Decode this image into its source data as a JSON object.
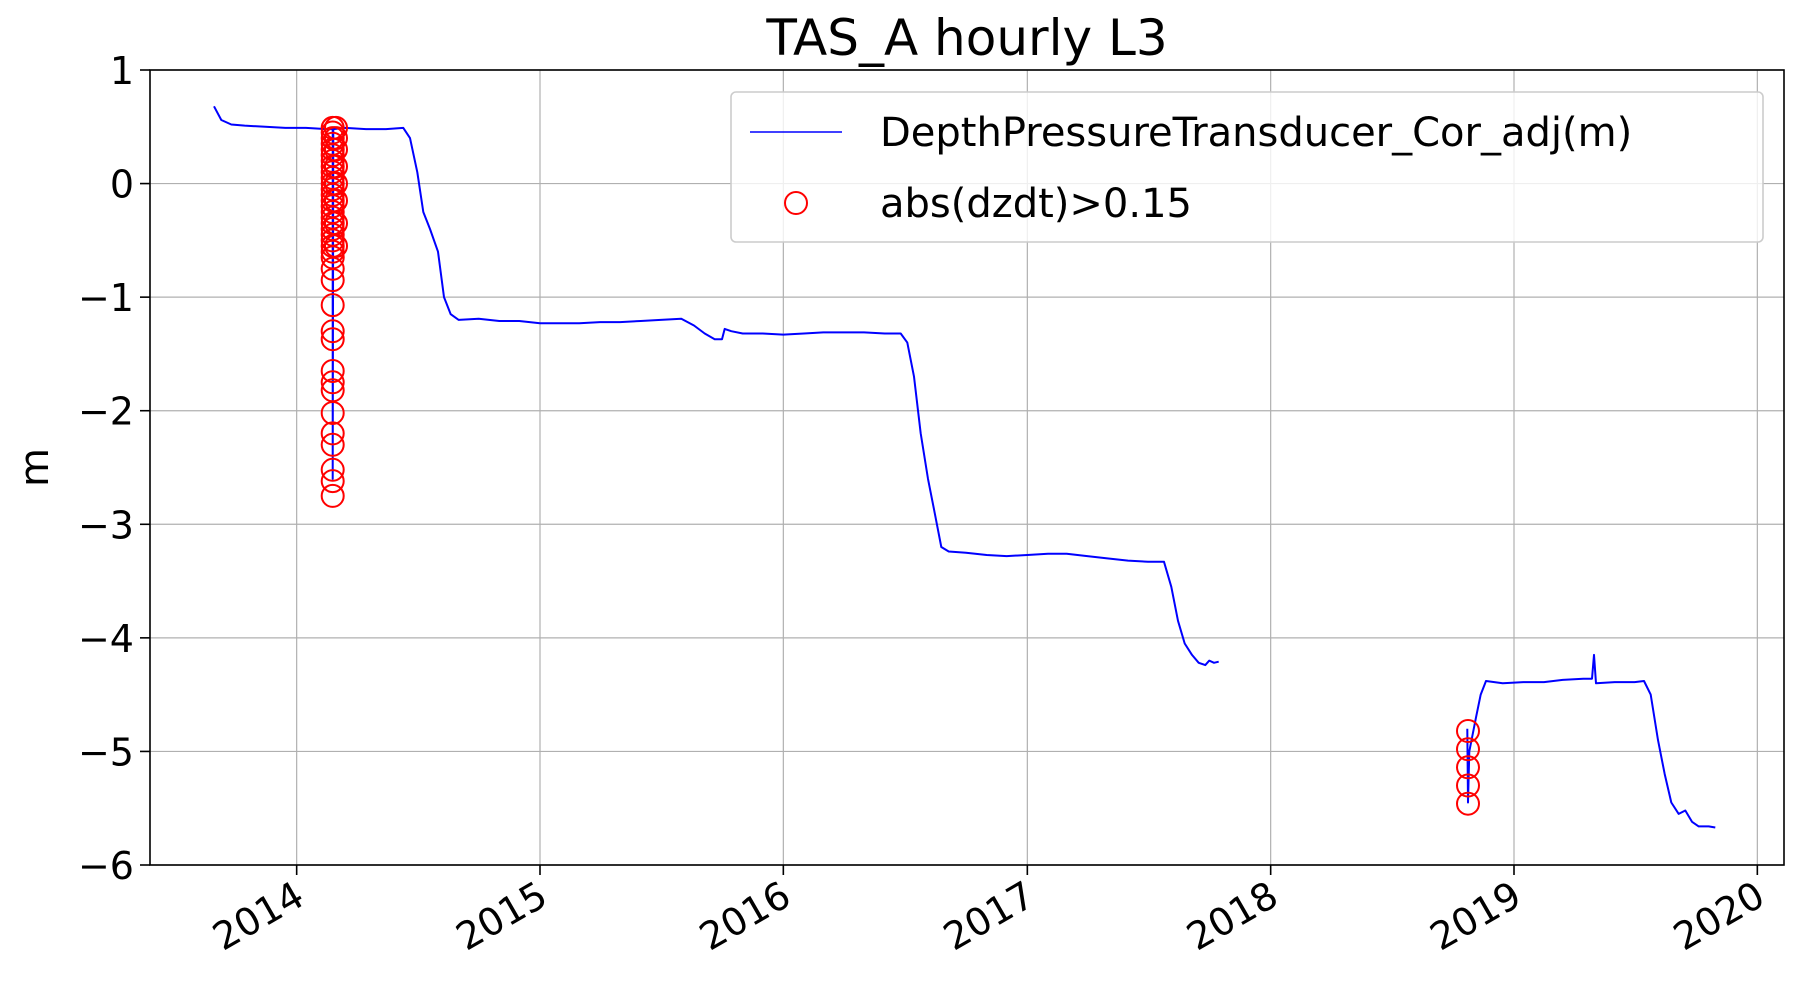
{
  "chart_data": {
    "type": "line",
    "title": "TAS_A hourly L3",
    "xlabel": "",
    "ylabel": "m",
    "x_tick_labels": [
      "2014",
      "2015",
      "2016",
      "2017",
      "2018",
      "2019",
      "2020"
    ],
    "y_tick_labels": [
      "1",
      "0",
      "−1",
      "−2",
      "−3",
      "−4",
      "−5",
      "−6"
    ],
    "y_ticks": [
      1,
      0,
      -1,
      -2,
      -3,
      -4,
      -5,
      -6
    ],
    "xlim": [
      "2013-05-26",
      "2020-02-10"
    ],
    "ylim": [
      -6,
      1
    ],
    "grid": true,
    "legend": {
      "placement": "top-right"
    },
    "colors": {
      "series": "#0000ff",
      "markers": "#ff0000",
      "grid": "#b0b0b0",
      "axis": "#000000"
    },
    "series": [
      {
        "name": "DepthPressureTransducer_Cor_adj(m)",
        "kind": "line",
        "segments": [
          [
            [
              "2013-08-30",
              0.68
            ],
            [
              "2013-09-10",
              0.56
            ],
            [
              "2013-09-25",
              0.52
            ],
            [
              "2013-10-15",
              0.51
            ],
            [
              "2013-11-15",
              0.5
            ],
            [
              "2013-12-15",
              0.49
            ],
            [
              "2014-01-15",
              0.49
            ],
            [
              "2014-02-15",
              0.48
            ],
            [
              "2014-02-24",
              0.48
            ],
            [
              "2014-02-24",
              -2.6
            ],
            [
              "2014-02-25",
              0.48
            ],
            [
              "2014-03-15",
              0.49
            ],
            [
              "2014-04-15",
              0.48
            ],
            [
              "2014-05-15",
              0.48
            ],
            [
              "2014-06-10",
              0.49
            ],
            [
              "2014-06-20",
              0.4
            ],
            [
              "2014-07-01",
              0.1
            ],
            [
              "2014-07-10",
              -0.25
            ],
            [
              "2014-07-20",
              -0.4
            ],
            [
              "2014-08-01",
              -0.6
            ],
            [
              "2014-08-10",
              -1.0
            ],
            [
              "2014-08-20",
              -1.15
            ],
            [
              "2014-09-01",
              -1.2
            ],
            [
              "2014-10-01",
              -1.19
            ],
            [
              "2014-11-01",
              -1.21
            ],
            [
              "2014-12-01",
              -1.21
            ],
            [
              "2015-01-01",
              -1.23
            ],
            [
              "2015-02-01",
              -1.23
            ],
            [
              "2015-03-01",
              -1.23
            ],
            [
              "2015-04-01",
              -1.22
            ],
            [
              "2015-05-01",
              -1.22
            ],
            [
              "2015-06-01",
              -1.21
            ],
            [
              "2015-07-01",
              -1.2
            ],
            [
              "2015-08-01",
              -1.19
            ],
            [
              "2015-08-20",
              -1.25
            ],
            [
              "2015-09-05",
              -1.32
            ],
            [
              "2015-09-20",
              -1.37
            ],
            [
              "2015-10-01",
              -1.37
            ],
            [
              "2015-10-05",
              -1.28
            ],
            [
              "2015-10-15",
              -1.3
            ],
            [
              "2015-11-01",
              -1.32
            ],
            [
              "2015-12-01",
              -1.32
            ],
            [
              "2016-01-01",
              -1.33
            ],
            [
              "2016-02-01",
              -1.32
            ],
            [
              "2016-03-01",
              -1.31
            ],
            [
              "2016-04-01",
              -1.31
            ],
            [
              "2016-05-01",
              -1.31
            ],
            [
              "2016-06-01",
              -1.32
            ],
            [
              "2016-06-25",
              -1.32
            ],
            [
              "2016-07-05",
              -1.4
            ],
            [
              "2016-07-15",
              -1.7
            ],
            [
              "2016-07-25",
              -2.2
            ],
            [
              "2016-08-05",
              -2.6
            ],
            [
              "2016-08-15",
              -2.9
            ],
            [
              "2016-08-25",
              -3.2
            ],
            [
              "2016-09-05",
              -3.24
            ],
            [
              "2016-10-01",
              -3.25
            ],
            [
              "2016-11-01",
              -3.27
            ],
            [
              "2016-12-01",
              -3.28
            ],
            [
              "2017-01-01",
              -3.27
            ],
            [
              "2017-02-01",
              -3.26
            ],
            [
              "2017-03-01",
              -3.26
            ],
            [
              "2017-04-01",
              -3.28
            ],
            [
              "2017-05-01",
              -3.3
            ],
            [
              "2017-06-01",
              -3.32
            ],
            [
              "2017-07-01",
              -3.33
            ],
            [
              "2017-07-25",
              -3.33
            ],
            [
              "2017-08-05",
              -3.55
            ],
            [
              "2017-08-15",
              -3.85
            ],
            [
              "2017-08-25",
              -4.05
            ],
            [
              "2017-09-05",
              -4.15
            ],
            [
              "2017-09-15",
              -4.22
            ],
            [
              "2017-09-25",
              -4.24
            ],
            [
              "2017-10-01",
              -4.2
            ],
            [
              "2017-10-08",
              -4.22
            ],
            [
              "2017-10-15",
              -4.21
            ]
          ],
          [
            [
              "2018-10-23",
              -4.8
            ],
            [
              "2018-10-24",
              -5.45
            ],
            [
              "2018-10-26",
              -5.0
            ],
            [
              "2018-11-05",
              -4.7
            ],
            [
              "2018-11-12",
              -4.5
            ],
            [
              "2018-11-20",
              -4.38
            ],
            [
              "2018-12-15",
              -4.4
            ],
            [
              "2019-01-15",
              -4.39
            ],
            [
              "2019-02-15",
              -4.39
            ],
            [
              "2019-03-15",
              -4.37
            ],
            [
              "2019-04-15",
              -4.36
            ],
            [
              "2019-04-28",
              -4.36
            ],
            [
              "2019-05-01",
              -4.15
            ],
            [
              "2019-05-04",
              -4.4
            ],
            [
              "2019-06-01",
              -4.39
            ],
            [
              "2019-07-01",
              -4.39
            ],
            [
              "2019-07-15",
              -4.38
            ],
            [
              "2019-07-25",
              -4.5
            ],
            [
              "2019-08-05",
              -4.9
            ],
            [
              "2019-08-15",
              -5.2
            ],
            [
              "2019-08-25",
              -5.45
            ],
            [
              "2019-09-05",
              -5.55
            ],
            [
              "2019-09-15",
              -5.52
            ],
            [
              "2019-09-25",
              -5.62
            ],
            [
              "2019-10-05",
              -5.66
            ],
            [
              "2019-10-20",
              -5.66
            ],
            [
              "2019-10-30",
              -5.67
            ]
          ]
        ]
      },
      {
        "name": "abs(dzdt)>0.15",
        "kind": "scatter",
        "marker": "open-circle",
        "groups": [
          {
            "x": "2014-02-24",
            "y": [
              0.49,
              0.45,
              0.4,
              0.35,
              0.3,
              0.25,
              0.2,
              0.15,
              0.1,
              0.05,
              0.0,
              -0.05,
              -0.1,
              -0.15,
              -0.2,
              -0.25,
              -0.3,
              -0.35,
              -0.4,
              -0.45,
              -0.5,
              -0.55,
              -0.6,
              -0.65,
              -0.75,
              -0.85,
              -1.07,
              -1.3,
              -1.37,
              -1.65,
              -1.75,
              -1.82,
              -2.02,
              -2.2,
              -2.3,
              -2.52,
              -2.62,
              -2.75
            ]
          },
          {
            "x": "2014-03-01",
            "y": [
              0.49,
              0.4,
              0.3,
              0.15,
              0.0,
              -0.15,
              -0.35,
              -0.55
            ]
          },
          {
            "x": "2018-10-24",
            "y": [
              -4.82,
              -4.98,
              -5.14,
              -5.3,
              -5.46
            ]
          }
        ]
      }
    ]
  }
}
